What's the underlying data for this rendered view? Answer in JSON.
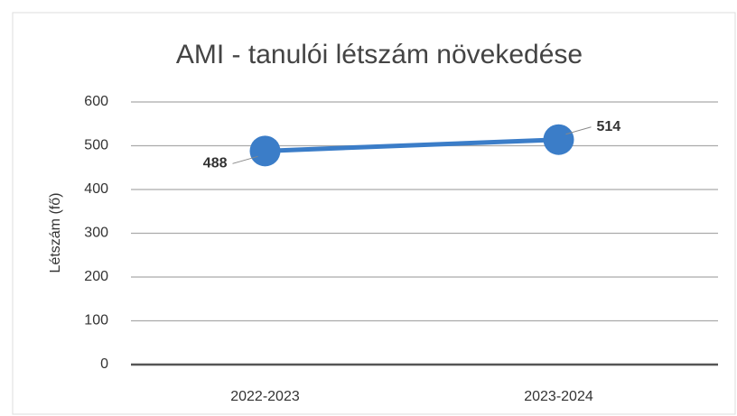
{
  "chart_data": {
    "type": "line",
    "title": "AMI - tanulói létszám növekedése",
    "y_label": "Létszám (fő)",
    "categories": [
      "2022-2023",
      "2023-2024"
    ],
    "series": [
      {
        "name": "AMI",
        "color": "#3b7dc8",
        "values": [
          488,
          514
        ]
      }
    ],
    "ylim": [
      0,
      600
    ],
    "yticks": [
      0,
      100,
      200,
      300,
      400,
      500,
      600
    ],
    "grid": true
  }
}
